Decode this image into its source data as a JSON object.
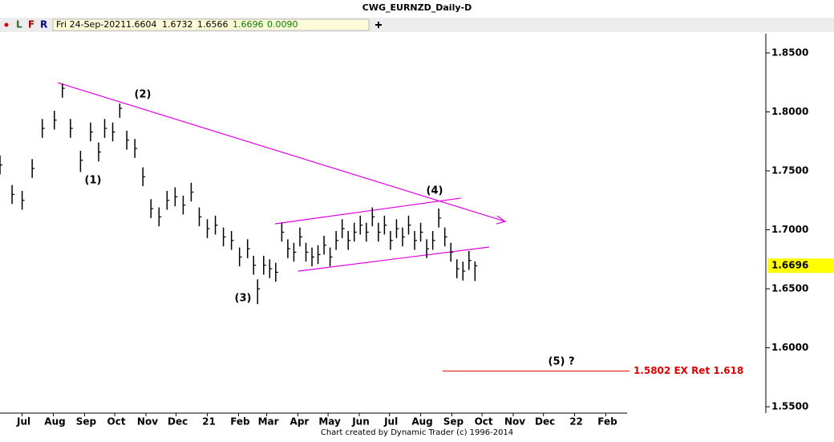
{
  "chart_data": {
    "type": "hlc",
    "title": "CWG_EURNZD_Daily-D",
    "toolbar": [
      "L",
      "F",
      "R"
    ],
    "info": [
      "Fri 24-Sep-2021",
      "1.6604",
      "1.6732",
      "1.6566",
      "1.6696",
      "0.0090"
    ],
    "footer": "Chart created by Dynamic Trader  (c) 1996-2014",
    "color": "#000000",
    "xlim": [
      8,
      769
    ],
    "xticks": [
      {
        "value": 30,
        "label": "Jul"
      },
      {
        "value": 61,
        "label": "Aug"
      },
      {
        "value": 92,
        "label": "Sep"
      },
      {
        "value": 122,
        "label": "Oct"
      },
      {
        "value": 153,
        "label": "Nov"
      },
      {
        "value": 183,
        "label": "Dec"
      },
      {
        "value": 214,
        "label": "21"
      },
      {
        "value": 245,
        "label": "Feb"
      },
      {
        "value": 273,
        "label": "Mar"
      },
      {
        "value": 304,
        "label": "Apr"
      },
      {
        "value": 334,
        "label": "May"
      },
      {
        "value": 365,
        "label": "Jun"
      },
      {
        "value": 395,
        "label": "Jul"
      },
      {
        "value": 426,
        "label": "Aug"
      },
      {
        "value": 457,
        "label": "Sep"
      },
      {
        "value": 487,
        "label": "Oct"
      },
      {
        "value": 518,
        "label": "Nov"
      },
      {
        "value": 548,
        "label": "Dec"
      },
      {
        "value": 579,
        "label": "22"
      },
      {
        "value": 610,
        "label": "Feb"
      }
    ],
    "ylim": [
      1.5446,
      1.8663
    ],
    "yticks": [
      {
        "value": 1.55,
        "label": "1.5500"
      },
      {
        "value": 1.6,
        "label": "1.6000"
      },
      {
        "value": 1.65,
        "label": "1.6500"
      },
      {
        "value": 1.7,
        "label": "1.7000"
      },
      {
        "value": 1.75,
        "label": "1.7500"
      },
      {
        "value": 1.8,
        "label": "1.8000"
      },
      {
        "value": 1.85,
        "label": "1.8500"
      }
    ],
    "last_price": {
      "value": 1.6696,
      "label": "1.6696"
    },
    "x": [
      8,
      20,
      30,
      40,
      50,
      62,
      70,
      78,
      88,
      98,
      106,
      112,
      120,
      127,
      134,
      142,
      150,
      158,
      166,
      174,
      182,
      190,
      198,
      206,
      214,
      222,
      230,
      238,
      246,
      254,
      260,
      264,
      270,
      276,
      282,
      288,
      294,
      300,
      306,
      312,
      318,
      324,
      330,
      336,
      342,
      348,
      354,
      360,
      366,
      372,
      378,
      384,
      390,
      396,
      402,
      408,
      414,
      420,
      426,
      432,
      438,
      444,
      450,
      456,
      462,
      468,
      474,
      480
    ],
    "high": [
      1.763,
      1.738,
      1.733,
      1.76,
      1.794,
      1.801,
      1.824,
      1.794,
      1.767,
      1.791,
      1.774,
      1.794,
      1.791,
      1.807,
      1.784,
      1.777,
      1.753,
      1.726,
      1.719,
      1.733,
      1.736,
      1.729,
      1.74,
      1.719,
      1.709,
      1.712,
      1.702,
      1.699,
      1.685,
      1.692,
      1.678,
      1.658,
      1.678,
      1.675,
      1.672,
      1.706,
      1.692,
      1.689,
      1.702,
      1.689,
      1.685,
      1.687,
      1.695,
      1.685,
      1.699,
      1.709,
      1.699,
      1.706,
      1.712,
      1.706,
      1.719,
      1.706,
      1.712,
      1.699,
      1.709,
      1.702,
      1.712,
      1.699,
      1.706,
      1.692,
      1.699,
      1.718,
      1.702,
      1.689,
      1.675,
      1.673,
      1.682,
      1.6732
    ],
    "low": [
      1.747,
      1.722,
      1.717,
      1.744,
      1.778,
      1.785,
      1.812,
      1.778,
      1.749,
      1.775,
      1.758,
      1.778,
      1.775,
      1.795,
      1.768,
      1.761,
      1.737,
      1.71,
      1.703,
      1.717,
      1.72,
      1.713,
      1.724,
      1.703,
      1.693,
      1.696,
      1.686,
      1.683,
      1.669,
      1.676,
      1.662,
      1.637,
      1.662,
      1.659,
      1.656,
      1.69,
      1.676,
      1.673,
      1.686,
      1.673,
      1.669,
      1.671,
      1.679,
      1.669,
      1.683,
      1.693,
      1.683,
      1.69,
      1.696,
      1.69,
      1.703,
      1.69,
      1.696,
      1.683,
      1.693,
      1.686,
      1.696,
      1.683,
      1.69,
      1.676,
      1.683,
      1.702,
      1.686,
      1.673,
      1.659,
      1.657,
      1.666,
      1.6566
    ],
    "close": [
      1.755,
      1.73,
      1.725,
      1.752,
      1.786,
      1.793,
      1.82,
      1.786,
      1.759,
      1.783,
      1.766,
      1.786,
      1.783,
      1.803,
      1.776,
      1.769,
      1.745,
      1.718,
      1.711,
      1.725,
      1.728,
      1.721,
      1.732,
      1.711,
      1.701,
      1.704,
      1.694,
      1.691,
      1.677,
      1.684,
      1.67,
      1.65,
      1.67,
      1.667,
      1.664,
      1.698,
      1.684,
      1.681,
      1.694,
      1.681,
      1.677,
      1.679,
      1.687,
      1.677,
      1.691,
      1.701,
      1.691,
      1.698,
      1.704,
      1.698,
      1.711,
      1.698,
      1.704,
      1.691,
      1.701,
      1.694,
      1.704,
      1.691,
      1.698,
      1.684,
      1.691,
      1.71,
      1.694,
      1.681,
      1.667,
      1.665,
      1.674,
      1.6696
    ],
    "trendlines": [
      {
        "color": "#e000e0",
        "x": [
          65.4,
          510
        ],
        "y": [
          1.8248,
          1.7071
        ]
      },
      {
        "color": "#e000e0",
        "x": [
          281.3,
          466
        ],
        "y": [
          1.7051,
          1.7269
        ]
      },
      {
        "color": "#e000e0",
        "x": [
          304.4,
          494
        ],
        "y": [
          1.665,
          1.6854
        ]
      }
    ],
    "level": {
      "color": "#e00000",
      "x": [
        447.8,
        633.5
      ],
      "value": 1.5802,
      "label": "1.5802 EX Ret 1.618"
    },
    "annotations": [
      "(1)",
      "(2)",
      "(3)",
      "(4)",
      "(5) ?"
    ]
  }
}
